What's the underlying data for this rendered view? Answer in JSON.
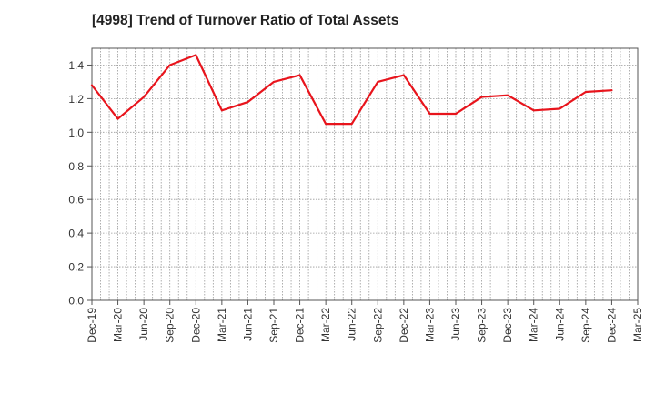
{
  "chart_data": {
    "type": "line",
    "title": "[4998]  Trend of Turnover Ratio of Total Assets",
    "xlabel": "",
    "ylabel": "",
    "ylim": [
      0,
      1.5
    ],
    "yticks": [
      "0.0",
      "0.2",
      "0.4",
      "0.6",
      "0.8",
      "1.0",
      "1.2",
      "1.4"
    ],
    "ytick_values": [
      0,
      0.2,
      0.4,
      0.6,
      0.8,
      1.0,
      1.2,
      1.4
    ],
    "xtick_labels": [
      "Dec-19",
      "Mar-20",
      "Jun-20",
      "Sep-20",
      "Dec-20",
      "Mar-21",
      "Jun-21",
      "Sep-21",
      "Dec-21",
      "Mar-22",
      "Jun-22",
      "Sep-22",
      "Dec-22",
      "Mar-23",
      "Jun-23",
      "Sep-23",
      "Dec-23",
      "Mar-24",
      "Jun-24",
      "Sep-24",
      "Dec-24",
      "Mar-25"
    ],
    "grid": true,
    "series": [
      {
        "color": "#e8141c",
        "x": [
          "Dec-19",
          "Mar-20",
          "Jun-20",
          "Sep-20",
          "Dec-20",
          "Mar-21",
          "Jun-21",
          "Sep-21",
          "Dec-21",
          "Mar-22",
          "Jun-22",
          "Sep-22",
          "Dec-22",
          "Mar-23",
          "Jun-23",
          "Sep-23",
          "Dec-23",
          "Mar-24",
          "Jun-24",
          "Sep-24",
          "Dec-24"
        ],
        "values": [
          1.28,
          1.08,
          1.21,
          1.4,
          1.46,
          1.13,
          1.18,
          1.3,
          1.34,
          1.05,
          1.05,
          1.3,
          1.34,
          1.11,
          1.11,
          1.21,
          1.22,
          1.13,
          1.14,
          1.24,
          1.25
        ]
      }
    ]
  }
}
